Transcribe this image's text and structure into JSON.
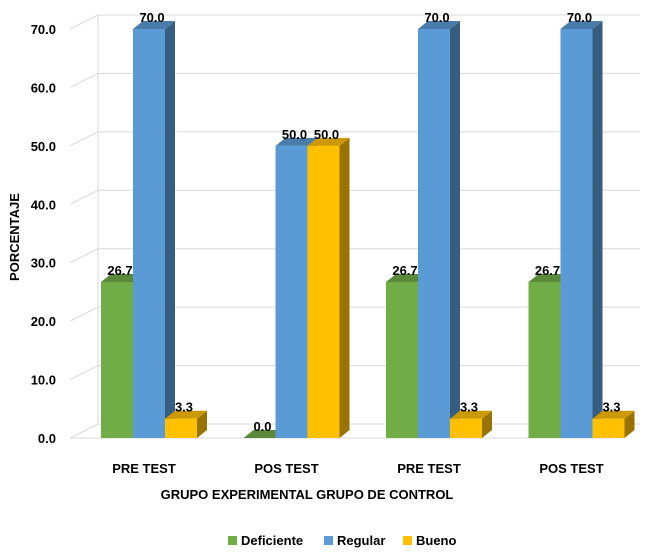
{
  "chart_data": {
    "type": "bar",
    "ylabel": "PORCENTAJE",
    "xlabel": "GRUPO EXPERIMENTAL GRUPO DE CONTROL",
    "categories": [
      "PRE TEST",
      "POS TEST",
      "PRE TEST",
      "POS TEST"
    ],
    "ylim": [
      0,
      70
    ],
    "yticks": [
      "0.0",
      "10.0",
      "20.0",
      "30.0",
      "40.0",
      "50.0",
      "60.0",
      "70.0"
    ],
    "grid": true,
    "legend_position": "bottom",
    "series": [
      {
        "name": "Deficiente",
        "color": "#70AD47",
        "values": [
          26.7,
          0.0,
          26.7,
          26.7
        ],
        "labels": [
          "26.7",
          "0.0",
          "26.7",
          "26.7"
        ]
      },
      {
        "name": "Regular",
        "color": "#5B9BD5",
        "values": [
          70.0,
          50.0,
          70.0,
          70.0
        ],
        "labels": [
          "70.0",
          "50.0",
          "70.0",
          "70.0"
        ]
      },
      {
        "name": "Bueno",
        "color": "#FFC000",
        "values": [
          3.3,
          50.0,
          3.3,
          3.3
        ],
        "labels": [
          "3.3",
          "50.0",
          "3.3",
          "3.3"
        ]
      }
    ]
  }
}
